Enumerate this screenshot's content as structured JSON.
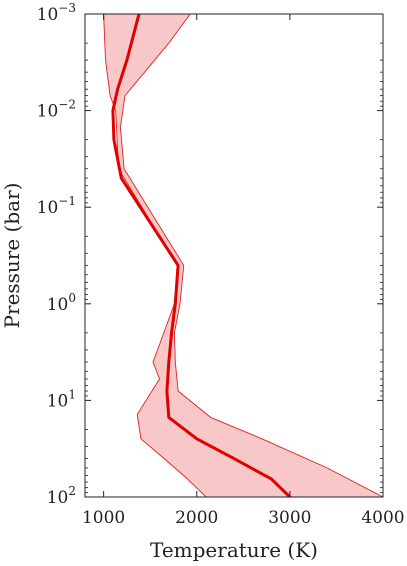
{
  "chart_data": {
    "type": "line",
    "title": "",
    "xlabel": "Temperature (K)",
    "ylabel": "Pressure (bar)",
    "xlim": [
      800,
      4000
    ],
    "ylim": [
      0.001,
      100
    ],
    "y_scale": "log",
    "y_inverted": true,
    "grid": false,
    "legend": "none",
    "x_ticks": [
      1000,
      2000,
      3000,
      4000
    ],
    "y_ticks": [
      {
        "value": 0.001,
        "base": "10",
        "exp": "−3"
      },
      {
        "value": 0.01,
        "base": "10",
        "exp": "−2"
      },
      {
        "value": 0.1,
        "base": "10",
        "exp": "−1"
      },
      {
        "value": 1,
        "base": "10",
        "exp": "0"
      },
      {
        "value": 10,
        "base": "10",
        "exp": "1"
      },
      {
        "value": 100,
        "base": "10",
        "exp": "2"
      }
    ],
    "colors": {
      "line": "#e00000",
      "band_fill": "#f8c8c8",
      "band_edge": "#e02020"
    },
    "series": [
      {
        "role": "median",
        "x": [
          1380,
          1250,
          1150,
          1100,
          1110,
          1190,
          1800,
          1770,
          1730,
          1700,
          1680,
          1700,
          2000,
          2400,
          2800,
          3000
        ],
        "y": [
          0.001,
          0.003,
          0.006,
          0.01,
          0.02,
          0.05,
          0.4,
          1,
          2,
          4,
          8,
          15,
          25,
          40,
          65,
          100
        ]
      },
      {
        "role": "band-upper",
        "x": [
          1930,
          1700,
          1440,
          1230,
          1180,
          1220,
          1860,
          1820,
          1760,
          1770,
          1800,
          2150,
          2700,
          3400,
          4000
        ],
        "y": [
          0.001,
          0.002,
          0.004,
          0.007,
          0.015,
          0.04,
          0.4,
          1,
          2,
          4,
          8,
          15,
          25,
          50,
          100
        ]
      },
      {
        "role": "band-lower",
        "x": [
          1000,
          1020,
          1070,
          1130,
          1160,
          1790,
          1760,
          1580,
          1530,
          1600,
          1360,
          1400,
          1650,
          1900,
          2100
        ],
        "y": [
          0.001,
          0.003,
          0.007,
          0.01,
          0.04,
          0.4,
          1,
          3,
          4,
          6,
          14,
          25,
          40,
          65,
          100
        ]
      }
    ]
  }
}
